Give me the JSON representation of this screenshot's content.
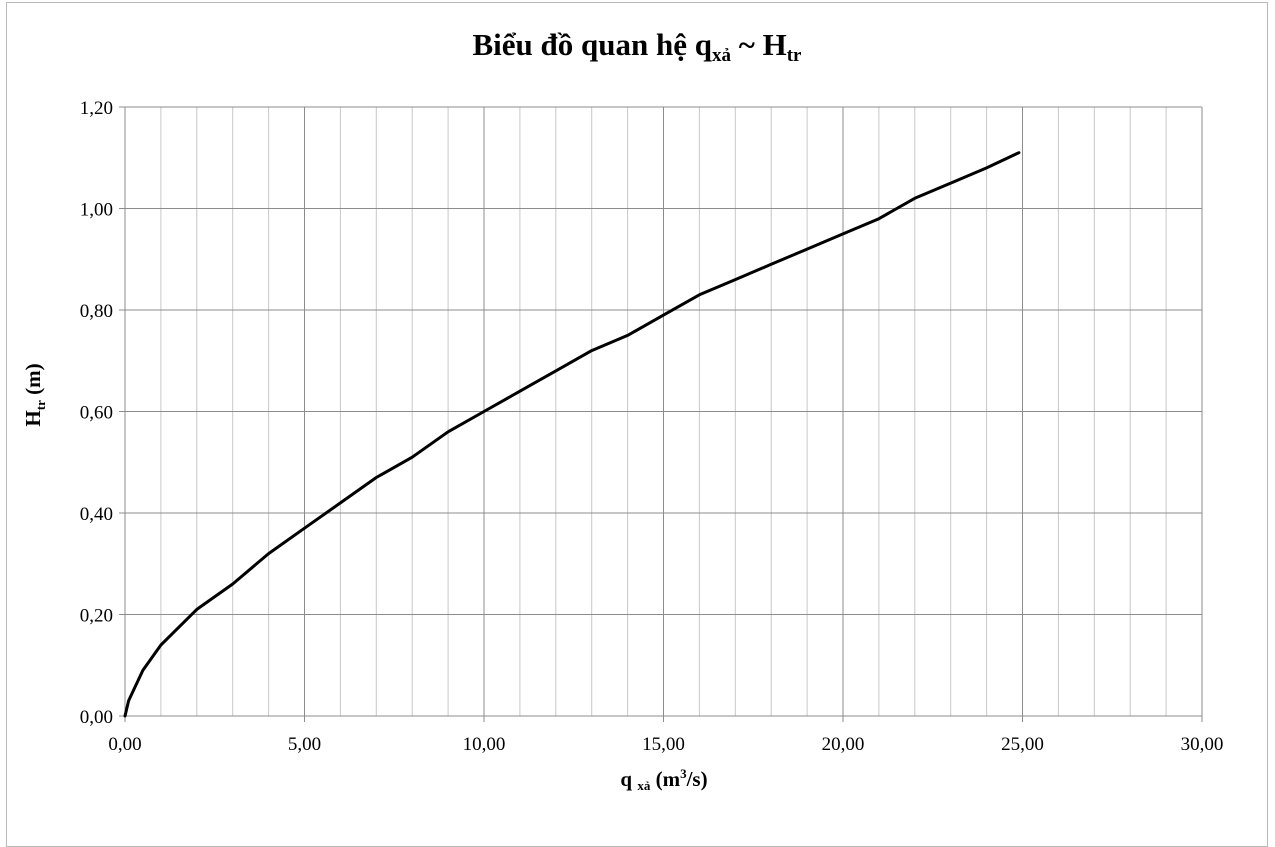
{
  "chart_data": {
    "type": "line",
    "title": {
      "main": "Biểu đồ quan hệ q",
      "sub1": "xả",
      "middle": " ~ H",
      "sub2": "tr"
    },
    "xlabel": {
      "pre": "q ",
      "sub": "xả",
      "unit_pre": " (m",
      "sup": "3",
      "unit_post": "/s)"
    },
    "ylabel": {
      "pre": "H",
      "sub": "tr",
      "post": " (m)"
    },
    "xlim": [
      0,
      30
    ],
    "ylim": [
      0,
      1.2
    ],
    "x_major_step": 5,
    "x_minor_step": 1,
    "y_major_step": 0.2,
    "x_tick_labels": [
      "0,00",
      "5,00",
      "10,00",
      "15,00",
      "20,00",
      "25,00",
      "30,00"
    ],
    "y_tick_labels": [
      "0,00",
      "0,20",
      "0,40",
      "0,60",
      "0,80",
      "1,00",
      "1,20"
    ],
    "grid": true,
    "legend": "none",
    "line_color": "#000000",
    "series": [
      {
        "x": [
          0,
          0.1,
          0.5,
          1,
          2,
          3,
          4,
          5,
          6,
          7,
          8,
          9,
          10,
          11,
          12,
          13,
          14,
          15,
          16,
          17,
          18,
          19,
          20,
          21,
          22,
          23,
          24,
          24.9
        ],
        "values": [
          0,
          0.03,
          0.09,
          0.14,
          0.21,
          0.26,
          0.32,
          0.37,
          0.42,
          0.47,
          0.51,
          0.56,
          0.6,
          0.64,
          0.68,
          0.72,
          0.75,
          0.79,
          0.83,
          0.86,
          0.89,
          0.92,
          0.95,
          0.98,
          1.02,
          1.05,
          1.08,
          1.11
        ]
      }
    ]
  }
}
